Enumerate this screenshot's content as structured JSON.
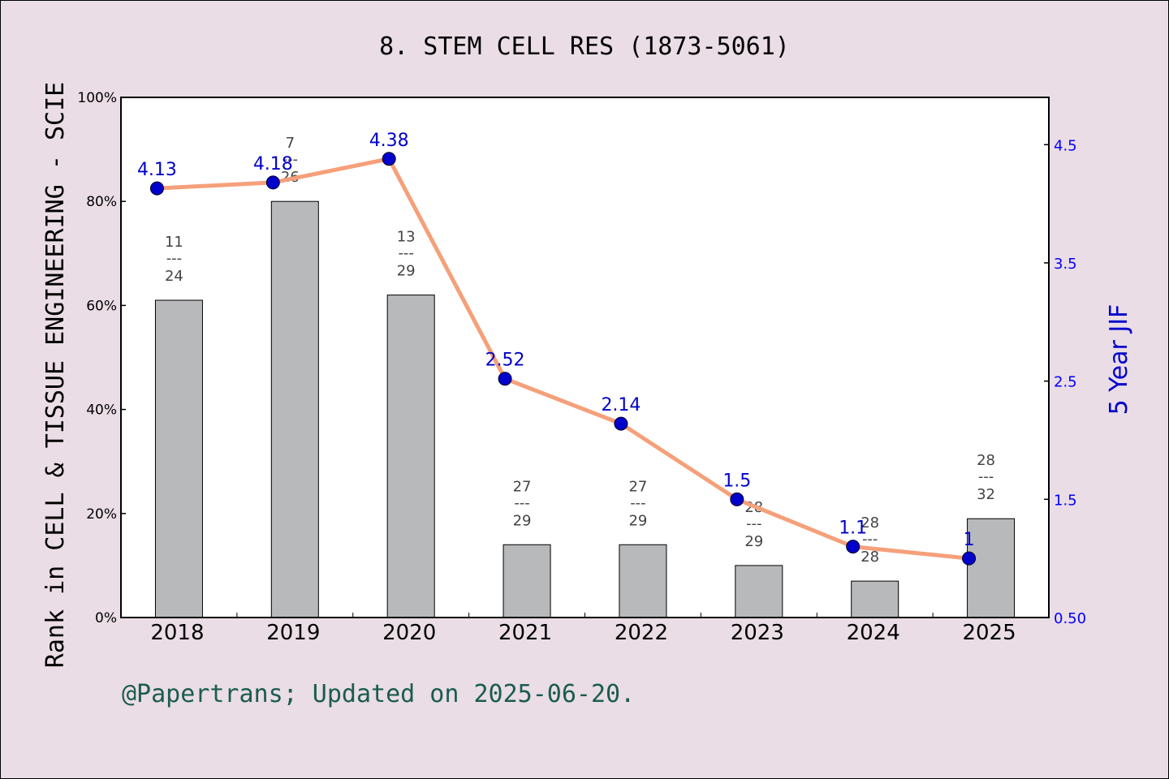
{
  "chart_data": {
    "type": "bar",
    "title": "8. STEM CELL RES (1873-5061)",
    "ylabel": "Rank in CELL & TISSUE ENGINEERING - SCIE",
    "y2label": "5 Year JIF",
    "categories": [
      "2018",
      "2019",
      "2020",
      "2021",
      "2022",
      "2023",
      "2024",
      "2025"
    ],
    "rank_fractions": [
      {
        "rank": "11",
        "total": "24"
      },
      {
        "rank": "7",
        "total": "26"
      },
      {
        "rank": "13",
        "total": "29"
      },
      {
        "rank": "27",
        "total": "29"
      },
      {
        "rank": "27",
        "total": "29"
      },
      {
        "rank": "28",
        "total": "29"
      },
      {
        "rank": "28",
        "total": "28"
      },
      {
        "rank": "28",
        "total": "32"
      }
    ],
    "bar_values_percent": [
      61,
      80,
      62,
      14,
      14,
      10,
      7,
      19
    ],
    "jif_values": [
      4.13,
      4.18,
      4.38,
      2.52,
      2.14,
      1.5,
      1.1,
      1
    ],
    "jif_labels": [
      "4.13",
      "4.18",
      "4.38",
      "2.52",
      "2.14",
      "1.5",
      "1.1",
      "1"
    ],
    "y_ticks": [
      "0%",
      "20%",
      "40%",
      "60%",
      "80%",
      "100%"
    ],
    "y_range": [
      0,
      100
    ],
    "y2_ticks": [
      "0.50",
      "1.5",
      "2.5",
      "3.5",
      "4.5"
    ],
    "y2_range": [
      0.5,
      4.9
    ],
    "colors": {
      "bar": "#b8b9bb",
      "line": "#f5a07a",
      "marker": "#0000cc",
      "background": "#eadde5",
      "footer": "#1a5c50"
    }
  },
  "footer": "@Papertrans; Updated on 2025-06-20."
}
